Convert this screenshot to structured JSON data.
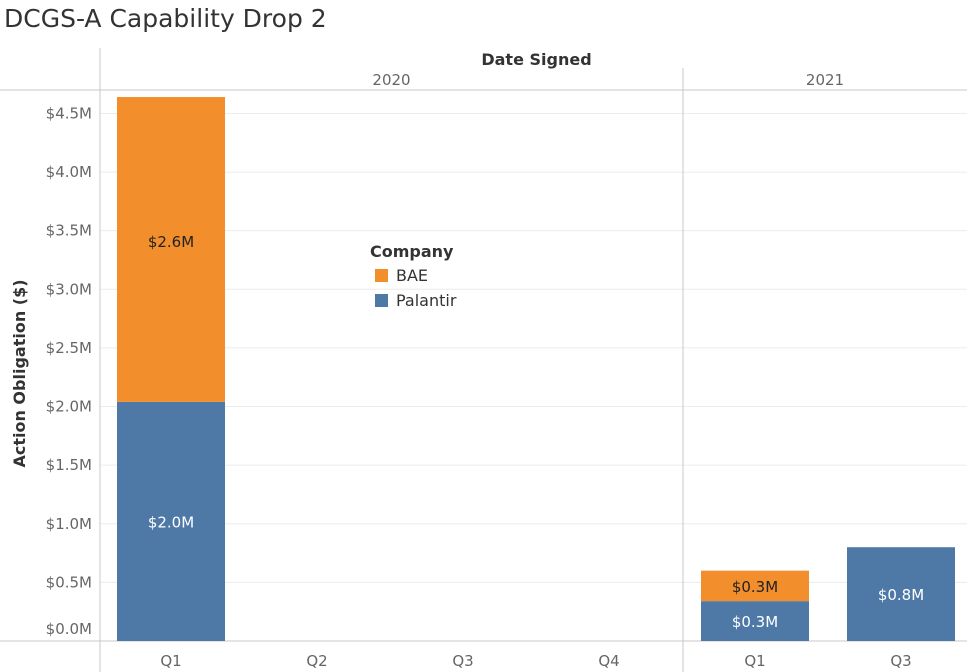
{
  "title": "DCGS-A Capability Drop 2",
  "chart_data": {
    "type": "bar",
    "stacked": true,
    "column_header": "Date Signed",
    "ylabel": "Action Obligation ($)",
    "ylim": [
      0,
      4.7
    ],
    "y_ticks": [
      "$0.0M",
      "$0.5M",
      "$1.0M",
      "$1.5M",
      "$2.0M",
      "$2.5M",
      "$3.0M",
      "$3.5M",
      "$4.0M",
      "$4.5M"
    ],
    "y_tick_values": [
      0,
      0.5,
      1.0,
      1.5,
      2.0,
      2.5,
      3.0,
      3.5,
      4.0,
      4.5
    ],
    "grid": true,
    "years": [
      "2020",
      "2021"
    ],
    "categories": [
      {
        "year": "2020",
        "quarter": "Q1"
      },
      {
        "year": "2020",
        "quarter": "Q2"
      },
      {
        "year": "2020",
        "quarter": "Q3"
      },
      {
        "year": "2020",
        "quarter": "Q4"
      },
      {
        "year": "2021",
        "quarter": "Q1"
      },
      {
        "year": "2021",
        "quarter": "Q3"
      }
    ],
    "series": [
      {
        "name": "Palantir",
        "color": "#4e79a7",
        "values": [
          2.04,
          null,
          null,
          null,
          0.34,
          0.8
        ],
        "labels": [
          "$2.0M",
          "",
          "",
          "",
          "$0.3M",
          "$0.8M"
        ]
      },
      {
        "name": "BAE",
        "color": "#f28e2b",
        "values": [
          2.6,
          null,
          null,
          null,
          0.26,
          null
        ],
        "labels": [
          "$2.6M",
          "",
          "",
          "",
          "$0.3M",
          ""
        ]
      }
    ],
    "legend": {
      "title": "Company",
      "placement": "inside-top-center",
      "entries": [
        {
          "name": "BAE",
          "color": "#f28e2b"
        },
        {
          "name": "Palantir",
          "color": "#4e79a7"
        }
      ]
    }
  }
}
